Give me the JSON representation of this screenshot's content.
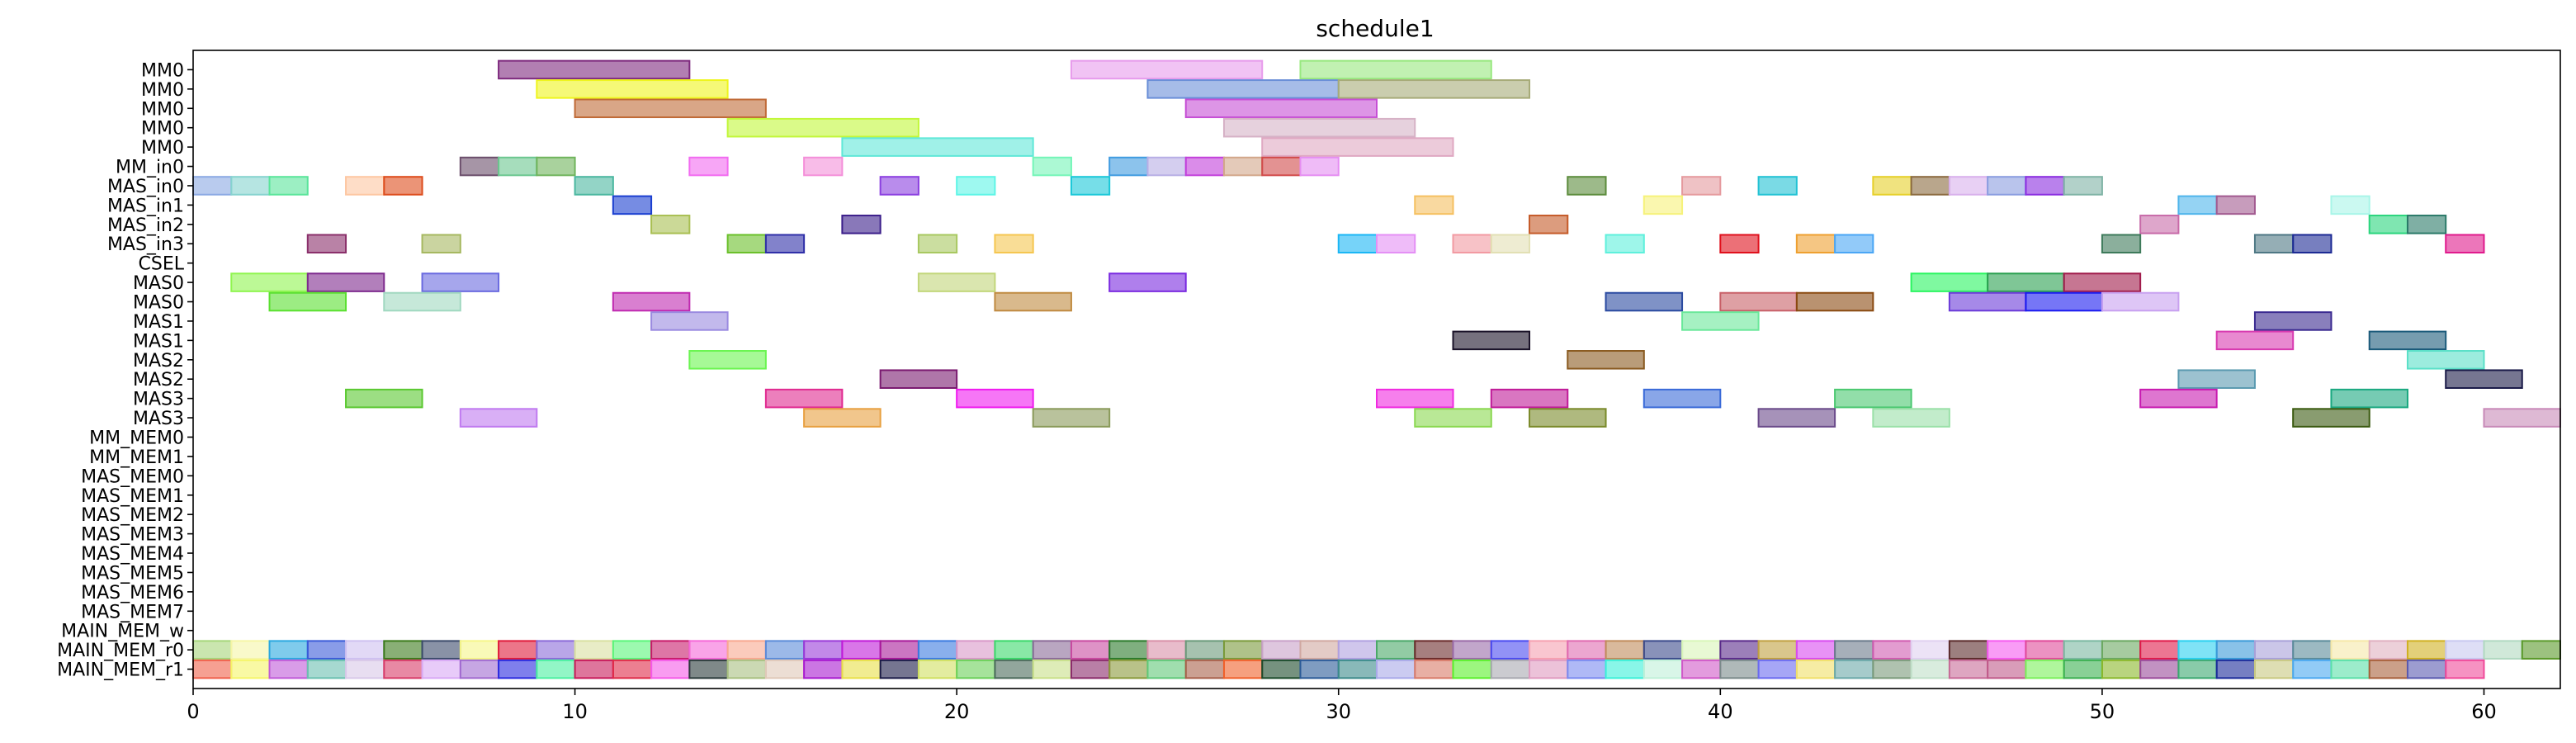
{
  "chart_data": {
    "type": "gantt",
    "title": "schedule1",
    "xlabel": "",
    "ylabel": "",
    "xlim": [
      0,
      62
    ],
    "x_ticks": [
      0,
      10,
      20,
      30,
      40,
      50,
      60
    ],
    "grid": false,
    "rows": [
      "MM0",
      "MM0",
      "MM0",
      "MM0",
      "MM0",
      "MM_in0",
      "MAS_in0",
      "MAS_in1",
      "MAS_in2",
      "MAS_in3",
      "CSEL",
      "MAS0",
      "MAS0",
      "MAS1",
      "MAS1",
      "MAS2",
      "MAS2",
      "MAS3",
      "MAS3",
      "MM_MEM0",
      "MM_MEM1",
      "MAS_MEM0",
      "MAS_MEM1",
      "MAS_MEM2",
      "MAS_MEM3",
      "MAS_MEM4",
      "MAS_MEM5",
      "MAS_MEM6",
      "MAS_MEM7",
      "MAIN_MEM_w",
      "MAIN_MEM_r0",
      "MAIN_MEM_r1"
    ],
    "tasks": [
      {
        "row": 0,
        "start": 8,
        "end": 13,
        "color": "#7e2a7e"
      },
      {
        "row": 0,
        "start": 23,
        "end": 28,
        "color": "#e79bec"
      },
      {
        "row": 0,
        "start": 29,
        "end": 34,
        "color": "#98e87f"
      },
      {
        "row": 1,
        "start": 9,
        "end": 14,
        "color": "#eef51d"
      },
      {
        "row": 1,
        "start": 25,
        "end": 30,
        "color": "#6a8fd8"
      },
      {
        "row": 1,
        "start": 30,
        "end": 35,
        "color": "#a7ab78"
      },
      {
        "row": 2,
        "start": 10,
        "end": 15,
        "color": "#c06a37"
      },
      {
        "row": 2,
        "start": 26,
        "end": 31,
        "color": "#c64fd5"
      },
      {
        "row": 3,
        "start": 14,
        "end": 19,
        "color": "#c2f73a"
      },
      {
        "row": 3,
        "start": 27,
        "end": 32,
        "color": "#d6b2c6"
      },
      {
        "row": 4,
        "start": 17,
        "end": 22,
        "color": "#60e8d8"
      },
      {
        "row": 4,
        "start": 28,
        "end": 33,
        "color": "#dfa8c2"
      },
      {
        "row": 5,
        "start": 7,
        "end": 8,
        "color": "#6b4e6b"
      },
      {
        "row": 5,
        "start": 8,
        "end": 9,
        "color": "#6bc78f"
      },
      {
        "row": 5,
        "start": 9,
        "end": 10,
        "color": "#70b45c"
      },
      {
        "row": 5,
        "start": 13,
        "end": 14,
        "color": "#f26bf0"
      },
      {
        "row": 5,
        "start": 16,
        "end": 17,
        "color": "#f48fd9"
      },
      {
        "row": 5,
        "start": 22,
        "end": 23,
        "color": "#74f5b8"
      },
      {
        "row": 5,
        "start": 24,
        "end": 25,
        "color": "#3f9be0"
      },
      {
        "row": 5,
        "start": 25,
        "end": 26,
        "color": "#b7aee5"
      },
      {
        "row": 5,
        "start": 26,
        "end": 27,
        "color": "#c240db"
      },
      {
        "row": 5,
        "start": 27,
        "end": 28,
        "color": "#d2a78a"
      },
      {
        "row": 5,
        "start": 28,
        "end": 29,
        "color": "#d14a4a"
      },
      {
        "row": 5,
        "start": 29,
        "end": 30,
        "color": "#e58df2"
      },
      {
        "row": 6,
        "start": 0,
        "end": 1,
        "color": "#8ba9e3"
      },
      {
        "row": 6,
        "start": 1,
        "end": 2,
        "color": "#86d3cf"
      },
      {
        "row": 6,
        "start": 2,
        "end": 3,
        "color": "#5ae59b"
      },
      {
        "row": 6,
        "start": 4,
        "end": 5,
        "color": "#fdc7a2"
      },
      {
        "row": 6,
        "start": 5,
        "end": 6,
        "color": "#dd4c1c"
      },
      {
        "row": 6,
        "start": 10,
        "end": 11,
        "color": "#4bb7a0"
      },
      {
        "row": 6,
        "start": 18,
        "end": 19,
        "color": "#8b3fe0"
      },
      {
        "row": 6,
        "start": 20,
        "end": 21,
        "color": "#5df5e6"
      },
      {
        "row": 6,
        "start": 23,
        "end": 24,
        "color": "#1ac8d8"
      },
      {
        "row": 6,
        "start": 36,
        "end": 37,
        "color": "#5c8c3c"
      },
      {
        "row": 6,
        "start": 39,
        "end": 40,
        "color": "#e59a9e"
      },
      {
        "row": 6,
        "start": 41,
        "end": 42,
        "color": "#22c2d4"
      },
      {
        "row": 6,
        "start": 44,
        "end": 45,
        "color": "#e6d02a"
      },
      {
        "row": 6,
        "start": 45,
        "end": 46,
        "color": "#8b6a3f"
      },
      {
        "row": 6,
        "start": 46,
        "end": 47,
        "color": "#d8b0ec"
      },
      {
        "row": 6,
        "start": 47,
        "end": 48,
        "color": "#8a9de0"
      },
      {
        "row": 6,
        "start": 48,
        "end": 49,
        "color": "#8a2de0"
      },
      {
        "row": 6,
        "start": 49,
        "end": 50,
        "color": "#7fb3a5"
      },
      {
        "row": 7,
        "start": 11,
        "end": 12,
        "color": "#1b3fd0"
      },
      {
        "row": 7,
        "start": 32,
        "end": 33,
        "color": "#f5c060"
      },
      {
        "row": 7,
        "start": 38,
        "end": 39,
        "color": "#f6f27a"
      },
      {
        "row": 7,
        "start": 52,
        "end": 53,
        "color": "#4fb5eb"
      },
      {
        "row": 7,
        "start": 53,
        "end": 54,
        "color": "#a25a90"
      },
      {
        "row": 7,
        "start": 56,
        "end": 57,
        "color": "#a8f5e8"
      },
      {
        "row": 8,
        "start": 12,
        "end": 13,
        "color": "#a9bf52"
      },
      {
        "row": 8,
        "start": 17,
        "end": 18,
        "color": "#3b1e8a"
      },
      {
        "row": 8,
        "start": 35,
        "end": 36,
        "color": "#c55a28"
      },
      {
        "row": 8,
        "start": 51,
        "end": 52,
        "color": "#c86aa8"
      },
      {
        "row": 8,
        "start": 57,
        "end": 58,
        "color": "#2ad57d"
      },
      {
        "row": 8,
        "start": 58,
        "end": 59,
        "color": "#2a7a68"
      },
      {
        "row": 9,
        "start": 3,
        "end": 4,
        "color": "#8a2f6a"
      },
      {
        "row": 9,
        "start": 6,
        "end": 7,
        "color": "#a6b860"
      },
      {
        "row": 9,
        "start": 14,
        "end": 15,
        "color": "#6ac02a"
      },
      {
        "row": 9,
        "start": 15,
        "end": 16,
        "color": "#2f2fa8"
      },
      {
        "row": 9,
        "start": 19,
        "end": 20,
        "color": "#a8c860"
      },
      {
        "row": 9,
        "start": 21,
        "end": 22,
        "color": "#f5c650"
      },
      {
        "row": 9,
        "start": 30,
        "end": 31,
        "color": "#1ab6f5"
      },
      {
        "row": 9,
        "start": 31,
        "end": 32,
        "color": "#e48ff5"
      },
      {
        "row": 9,
        "start": 33,
        "end": 34,
        "color": "#f29aa2"
      },
      {
        "row": 9,
        "start": 34,
        "end": 35,
        "color": "#e2e0b4"
      },
      {
        "row": 9,
        "start": 37,
        "end": 38,
        "color": "#5ef0dc"
      },
      {
        "row": 9,
        "start": 40,
        "end": 41,
        "color": "#e0101c"
      },
      {
        "row": 9,
        "start": 42,
        "end": 43,
        "color": "#eea030"
      },
      {
        "row": 9,
        "start": 43,
        "end": 44,
        "color": "#4aa6f5"
      },
      {
        "row": 9,
        "start": 50,
        "end": 51,
        "color": "#3d7a5a"
      },
      {
        "row": 9,
        "start": 54,
        "end": 55,
        "color": "#4e7884"
      },
      {
        "row": 9,
        "start": 55,
        "end": 56,
        "color": "#1c2a94"
      },
      {
        "row": 9,
        "start": 59,
        "end": 60,
        "color": "#e01a8c"
      },
      {
        "row": 11,
        "start": 1,
        "end": 3,
        "color": "#90f550"
      },
      {
        "row": 11,
        "start": 3,
        "end": 5,
        "color": "#7e2a8e"
      },
      {
        "row": 11,
        "start": 6,
        "end": 8,
        "color": "#6a6ae0"
      },
      {
        "row": 11,
        "start": 19,
        "end": 21,
        "color": "#c2d67a"
      },
      {
        "row": 11,
        "start": 24,
        "end": 26,
        "color": "#7a2ae0"
      },
      {
        "row": 11,
        "start": 45,
        "end": 47,
        "color": "#2af560"
      },
      {
        "row": 11,
        "start": 47,
        "end": 49,
        "color": "#2aa050"
      },
      {
        "row": 11,
        "start": 49,
        "end": 51,
        "color": "#a01a4a"
      },
      {
        "row": 12,
        "start": 2,
        "end": 4,
        "color": "#5ae030"
      },
      {
        "row": 12,
        "start": 5,
        "end": 7,
        "color": "#a0d8c0"
      },
      {
        "row": 12,
        "start": 11,
        "end": 13,
        "color": "#c02ab0"
      },
      {
        "row": 12,
        "start": 21,
        "end": 23,
        "color": "#c08a40"
      },
      {
        "row": 12,
        "start": 37,
        "end": 39,
        "color": "#2a4aa0"
      },
      {
        "row": 12,
        "start": 40,
        "end": 42,
        "color": "#c86068"
      },
      {
        "row": 12,
        "start": 42,
        "end": 44,
        "color": "#8a4a10"
      },
      {
        "row": 12,
        "start": 46,
        "end": 48,
        "color": "#6a3ad8"
      },
      {
        "row": 12,
        "start": 48,
        "end": 50,
        "color": "#1a1af0"
      },
      {
        "row": 12,
        "start": 50,
        "end": 52,
        "color": "#c8a0f0"
      },
      {
        "row": 13,
        "start": 12,
        "end": 14,
        "color": "#9a8ae0"
      },
      {
        "row": 13,
        "start": 39,
        "end": 41,
        "color": "#6ae89a"
      },
      {
        "row": 13,
        "start": 54,
        "end": 56,
        "color": "#3a2a90"
      },
      {
        "row": 14,
        "start": 33,
        "end": 35,
        "color": "#1a1228"
      },
      {
        "row": 14,
        "start": 53,
        "end": 55,
        "color": "#d83ab0"
      },
      {
        "row": 14,
        "start": 57,
        "end": 59,
        "color": "#1a5a7a"
      },
      {
        "row": 15,
        "start": 13,
        "end": 15,
        "color": "#6af550"
      },
      {
        "row": 15,
        "start": 36,
        "end": 38,
        "color": "#8a5a20"
      },
      {
        "row": 15,
        "start": 58,
        "end": 60,
        "color": "#5ae0c8"
      },
      {
        "row": 16,
        "start": 18,
        "end": 20,
        "color": "#7a1a70"
      },
      {
        "row": 16,
        "start": 52,
        "end": 54,
        "color": "#5a9ab0"
      },
      {
        "row": 16,
        "start": 59,
        "end": 61,
        "color": "#1a1a48"
      },
      {
        "row": 17,
        "start": 4,
        "end": 6,
        "color": "#5ac830"
      },
      {
        "row": 17,
        "start": 15,
        "end": 17,
        "color": "#e02a90"
      },
      {
        "row": 17,
        "start": 20,
        "end": 22,
        "color": "#f01af0"
      },
      {
        "row": 17,
        "start": 31,
        "end": 33,
        "color": "#f02ae0"
      },
      {
        "row": 17,
        "start": 34,
        "end": 36,
        "color": "#c01a98"
      },
      {
        "row": 17,
        "start": 38,
        "end": 40,
        "color": "#3a6ad8"
      },
      {
        "row": 17,
        "start": 43,
        "end": 45,
        "color": "#4ac870"
      },
      {
        "row": 17,
        "start": 51,
        "end": 53,
        "color": "#c81ab0"
      },
      {
        "row": 17,
        "start": 56,
        "end": 58,
        "color": "#1aa880"
      },
      {
        "row": 18,
        "start": 7,
        "end": 9,
        "color": "#c07af0"
      },
      {
        "row": 18,
        "start": 16,
        "end": 18,
        "color": "#e8a040"
      },
      {
        "row": 18,
        "start": 22,
        "end": 24,
        "color": "#8a9a5a"
      },
      {
        "row": 18,
        "start": 32,
        "end": 34,
        "color": "#8ad850"
      },
      {
        "row": 18,
        "start": 35,
        "end": 37,
        "color": "#7a8a2a"
      },
      {
        "row": 18,
        "start": 41,
        "end": 43,
        "color": "#6a4a8a"
      },
      {
        "row": 18,
        "start": 44,
        "end": 46,
        "color": "#9ae0a8"
      },
      {
        "row": 18,
        "start": 55,
        "end": 57,
        "color": "#3a5a10"
      },
      {
        "row": 18,
        "start": 60,
        "end": 62,
        "color": "#c88ab8"
      }
    ],
    "mem_r0_colors": [
      "#a6d67a",
      "#f5f5a6",
      "#2aa8e0",
      "#3a5ad8",
      "#cec0f0",
      "#3a7a1a",
      "#3a4a6a",
      "#f5f588",
      "#e01a3a",
      "#8a6ad8",
      "#d8e0a0",
      "#5af57a",
      "#c81a6a",
      "#f568d8",
      "#f8a890",
      "#5a8ad8",
      "#9a3ad8",
      "#c01ad8",
      "#a81a9a",
      "#3a7ae0",
      "#d898c8",
      "#3ad86a",
      "#8a6a98",
      "#c84aa0",
      "#2a7a2a",
      "#d890a8",
      "#6a9a7a",
      "#7a9a3a",
      "#c8a0c8",
      "#d0a8a0",
      "#b0a0e0",
      "#4aa868",
      "#6a2a2a",
      "#9a6aa8",
      "#4a4af0",
      "#f5a0b0",
      "#e06ab0",
      "#c08a5a",
      "#3a4a8a",
      "#d8f5b8",
      "#5a2a8a",
      "#c0a040",
      "#d84af0",
      "#6a7a8a",
      "#d05ab0",
      "#e0d0f0",
      "#5a2a2a",
      "#f55af0",
      "#e04a9a",
      "#7ab8a0",
      "#6aa860",
      "#e01a4a",
      "#2ad0f0",
      "#3a9ad8",
      "#a8a0d8",
      "#5a8a9a",
      "#f5e8a8",
      "#e0b0c0",
      "#d0b020",
      "#c8c8f0",
      "#b0d8c0",
      "#5a9a2a"
    ],
    "mem_r1_colors": [
      "#f0604a",
      "#f5f568",
      "#c05ad8",
      "#6ac0b0",
      "#d8c8e8",
      "#d83a68",
      "#d8a8f5",
      "#a06ad0",
      "#2a2ae0",
      "#4af0a0",
      "#c81a5a",
      "#e02a48",
      "#f55ae8",
      "#2a3a3a",
      "#a8c080",
      "#e0c8b8",
      "#a81ad0",
      "#e8e048",
      "#1a1a48",
      "#d0e060",
      "#6ad058",
      "#4a6a5a",
      "#c8e088",
      "#8a2a6a",
      "#8a9a3a",
      "#60c878",
      "#a8604a",
      "#f0602a",
      "#1a4a2a",
      "#2a5a98",
      "#3a8a8a",
      "#a8a8e8",
      "#d87a68",
      "#5af02a",
      "#a8a8b0",
      "#e09ac0",
      "#7a8af0",
      "#3af0d8",
      "#c0f0d8",
      "#d058c8",
      "#7a8a8a",
      "#6a6af0",
      "#f0e068",
      "#6aa8a8",
      "#7a9a7a",
      "#c0e0c8",
      "#c86a98",
      "#c05a8a",
      "#7af05a",
      "#3ab050",
      "#8ab82a",
      "#9a4a9a",
      "#3aa870",
      "#1a2a9a",
      "#c8c880",
      "#4aa8f0",
      "#5ae0a8",
      "#a8603a",
      "#5a5ab0",
      "#f04a9a"
    ]
  }
}
